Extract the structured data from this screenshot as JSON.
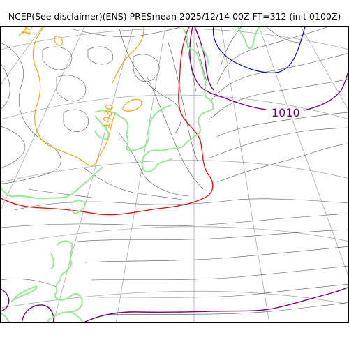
{
  "title": "NCEP(See disclaimer)(ENS) PRESmean 2025/12/14 00Z FT=312 (init 0100Z)",
  "colors": {
    "isobar": "#555555",
    "grid": "#aaaaaa",
    "coast": "#90ee90",
    "iso_1010": "#800080",
    "iso_1020": "#ff0000",
    "iso_1030": "#ffa500",
    "iso_blue": "#0000ff"
  },
  "contour_labels": {
    "label_1010": "1010",
    "label_1030": "1030",
    "label_top_left": "10"
  }
}
